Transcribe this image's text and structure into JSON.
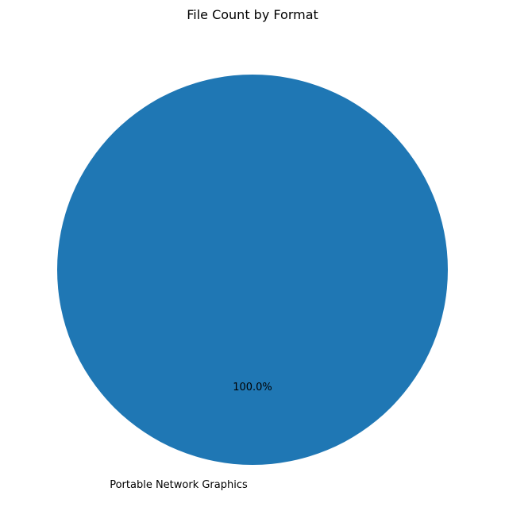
{
  "chart_data": {
    "type": "pie",
    "title": "File Count by Format",
    "labels": [
      "Portable Network Graphics"
    ],
    "values": [
      100
    ],
    "percent_labels": [
      "100.0%"
    ],
    "colors": [
      "#1f77b4"
    ],
    "legend": "none"
  }
}
